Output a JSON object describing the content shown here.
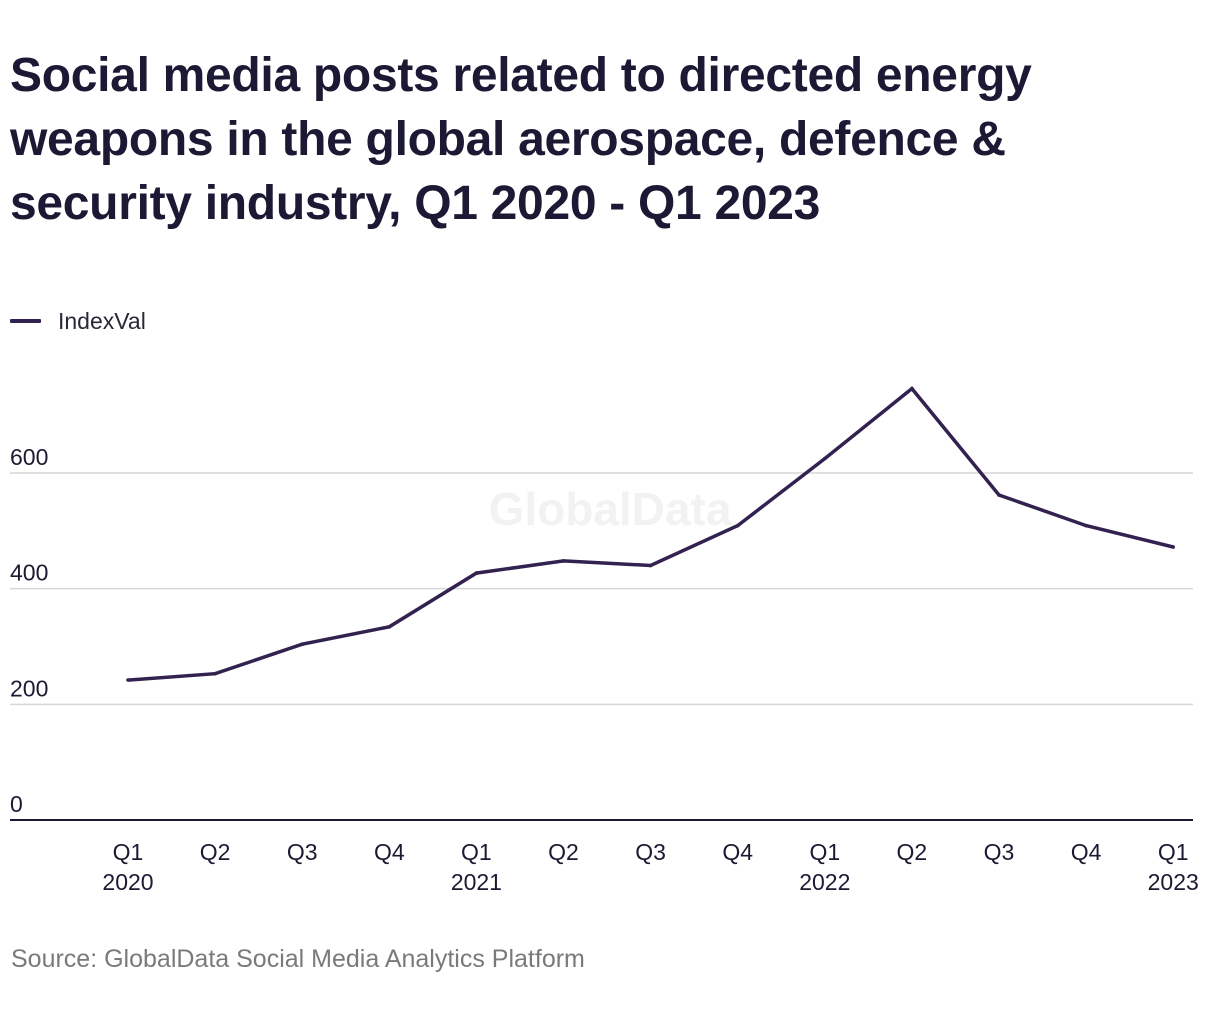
{
  "title": "Social media posts related to directed energy weapons in the global aerospace, defence & security industry, Q1 2020 - Q1 2023",
  "source": "Source: GlobalData Social Media Analytics Platform",
  "watermark": "GlobalData",
  "colors": {
    "line": "#33224f",
    "grid": "#d6d6d6",
    "axis": "#1c1a33",
    "text": "#1c1a33",
    "muted": "#7a7a7a"
  },
  "chart_data": {
    "type": "line",
    "title": "Social media posts related to directed energy weapons in the global aerospace, defence & security industry, Q1 2020 - Q1 2023",
    "xlabel": "",
    "ylabel": "",
    "x_ticks": [
      [
        "Q1",
        "2020"
      ],
      [
        "Q2",
        ""
      ],
      [
        "Q3",
        ""
      ],
      [
        "Q4",
        ""
      ],
      [
        "Q1",
        "2021"
      ],
      [
        "Q2",
        ""
      ],
      [
        "Q3",
        ""
      ],
      [
        "Q4",
        ""
      ],
      [
        "Q1",
        "2022"
      ],
      [
        "Q2",
        ""
      ],
      [
        "Q3",
        ""
      ],
      [
        "Q4",
        ""
      ],
      [
        "Q1",
        "2023"
      ]
    ],
    "y_ticks": [
      0,
      200,
      400,
      600
    ],
    "ylim": [
      0,
      780
    ],
    "grid": true,
    "legend_position": "top-left",
    "series": [
      {
        "name": "IndexVal",
        "values": [
          242,
          253,
          304,
          334,
          427,
          448,
          440,
          509,
          625,
          746,
          562,
          509,
          472
        ]
      }
    ]
  }
}
